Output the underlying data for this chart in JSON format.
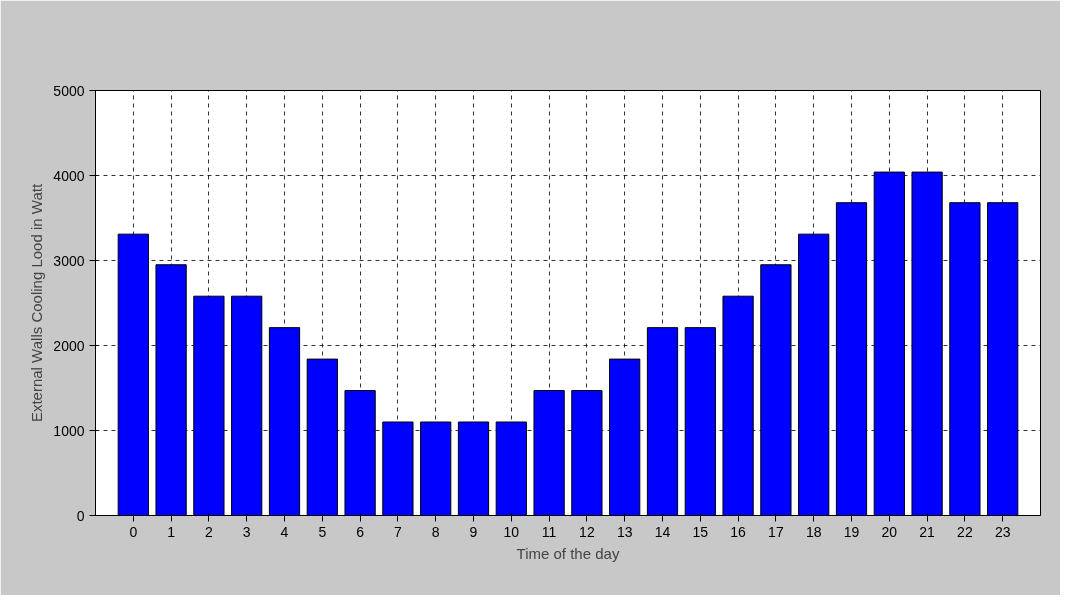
{
  "chart_data": {
    "type": "bar",
    "xlabel": "Time of the day",
    "ylabel": "External Walls Cooling Lood in Watt",
    "x": [
      0,
      1,
      2,
      3,
      4,
      5,
      6,
      7,
      8,
      9,
      10,
      11,
      12,
      13,
      14,
      15,
      16,
      17,
      18,
      19,
      20,
      21,
      22,
      23
    ],
    "values": [
      3310,
      2950,
      2580,
      2580,
      2210,
      1840,
      1470,
      1100,
      1100,
      1100,
      1100,
      1470,
      1470,
      1840,
      2210,
      2210,
      2580,
      2950,
      3310,
      3680,
      4040,
      4040,
      3680,
      3680
    ],
    "color": "#0000ff",
    "xlim": [
      -1,
      24
    ],
    "xticks": [
      0,
      1,
      2,
      3,
      4,
      5,
      6,
      7,
      8,
      9,
      10,
      11,
      12,
      13,
      14,
      15,
      16,
      17,
      18,
      19,
      20,
      21,
      22,
      23
    ],
    "ylim": [
      0,
      5000
    ],
    "yticks": [
      0,
      1000,
      2000,
      3000,
      4000,
      5000
    ],
    "grid": true,
    "line_style": "dashed"
  }
}
